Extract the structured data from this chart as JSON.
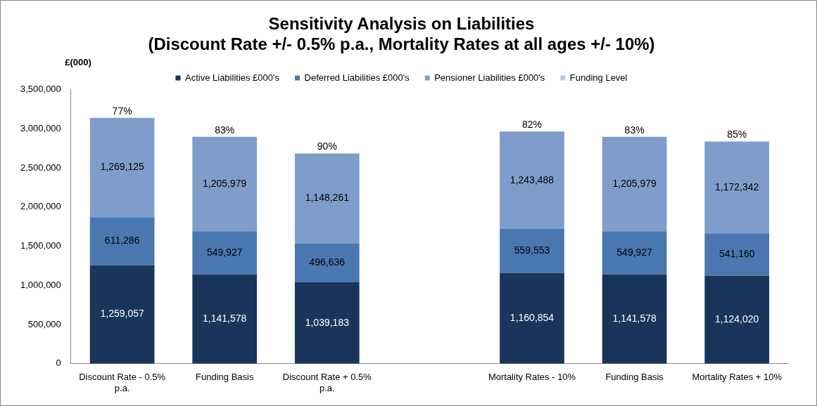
{
  "chart_data": {
    "type": "bar",
    "title": [
      "Sensitivity Analysis on Liabilities",
      "(Discount Rate +/- 0.5% p.a., Mortality Rates at all ages +/- 10%)"
    ],
    "ylabel": "£(000)",
    "categories": [
      "Discount Rate - 0.5% p.a.",
      "Funding Basis",
      "Discount Rate + 0.5% p.a.",
      null,
      "Mortality Rates - 10%",
      "Funding Basis",
      "Mortality Rates + 10%"
    ],
    "stacked": true,
    "legend": "top",
    "grid": false,
    "ylim": [
      0,
      3500000
    ],
    "yticks": [
      {
        "value": 0,
        "label": "0"
      },
      {
        "value": 500000,
        "label": "500,000"
      },
      {
        "value": 1000000,
        "label": "1,000,000"
      },
      {
        "value": 1500000,
        "label": "1,500,000"
      },
      {
        "value": 2000000,
        "label": "2,000,000"
      },
      {
        "value": 2500000,
        "label": "2,500,000"
      },
      {
        "value": 3000000,
        "label": "3,000,000"
      },
      {
        "value": 3500000,
        "label": "3,500,000"
      }
    ],
    "series": [
      {
        "name": "Active Liabilities £000's",
        "color": "#1a355b",
        "values": [
          1259057,
          1141578,
          1039183,
          null,
          1160854,
          1141578,
          1124020
        ],
        "value_labels": [
          "1,259,057",
          "1,141,578",
          "1,039,183",
          null,
          "1,160,854",
          "1,141,578",
          "1,124,020"
        ]
      },
      {
        "name": "Deferred Liabilities £000's",
        "color": "#4a77b0",
        "values": [
          611286,
          549927,
          496636,
          null,
          559553,
          549927,
          541160
        ],
        "value_labels": [
          "611,286",
          "549,927",
          "496,636",
          null,
          "559,553",
          "549,927",
          "541,160"
        ]
      },
      {
        "name": "Pensioner Liabilities £000's",
        "color": "#7f9dca",
        "values": [
          1269125,
          1205979,
          1148261,
          null,
          1243488,
          1205979,
          1172342
        ],
        "value_labels": [
          "1,269,125",
          "1,205,979",
          "1,148,261",
          null,
          "1,243,488",
          "1,205,979",
          "1,172,342"
        ]
      },
      {
        "name": "Funding Level",
        "color": "#b7c8e3",
        "values": [
          null,
          null,
          null,
          null,
          null,
          null,
          null
        ]
      }
    ],
    "annotations": [
      {
        "text": "77%",
        "x": "Discount Rate - 0.5% p.a.",
        "y": 3139468
      },
      {
        "text": "83%",
        "x": "Funding Basis",
        "y": 2897484
      },
      {
        "text": "90%",
        "x": "Discount Rate + 0.5% p.a.",
        "y": 2684080
      },
      {
        "text": "82%",
        "x": "Mortality Rates - 10%",
        "y": 2963895
      },
      {
        "text": "85%",
        "x": "Mortality Rates + 10%",
        "y": 2837522
      }
    ]
  }
}
